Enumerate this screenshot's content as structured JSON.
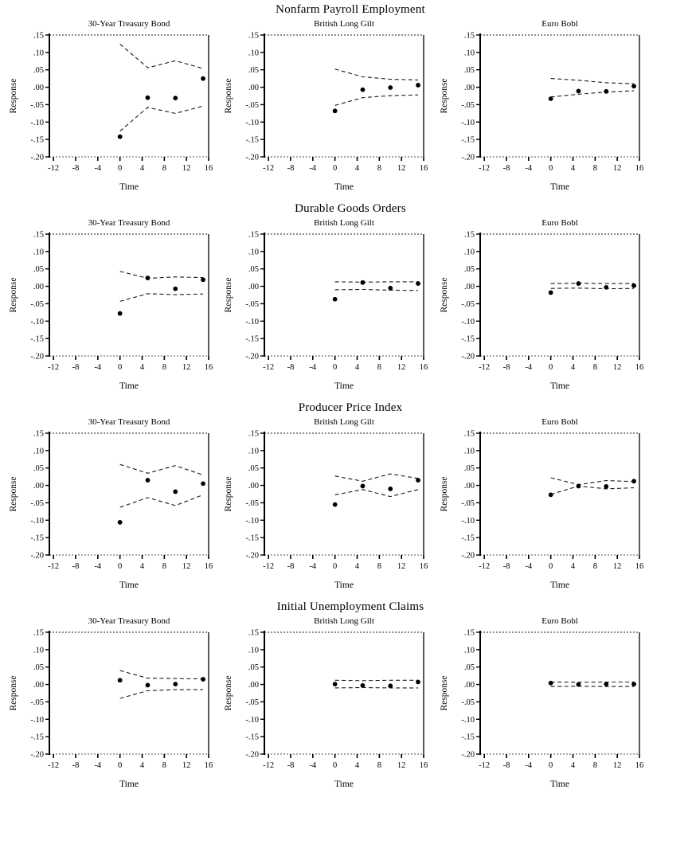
{
  "page": {
    "background": "#ffffff"
  },
  "colors": {
    "ink": "#000000",
    "frame_dotted": "#8e8e82",
    "band_line": "#1a1a1a",
    "dot": "#000000"
  },
  "chart_data": {
    "type": "scatter",
    "description_visible": "Impulse response figure grid: 4 economic-news rows by 3 bond-futures columns, each panel showing point-estimate dots with upper/lower dashed confidence bands",
    "grid": false,
    "legend": null,
    "axes": {
      "ylabel": "Response",
      "xlabel": "Time",
      "ylim": [
        -0.2,
        0.15
      ],
      "xlim": [
        -12.74,
        16
      ],
      "ytick_labels": [
        ".15",
        ".10",
        ".05",
        ".00",
        "-.05",
        "-.10",
        "-.15",
        "-.20"
      ],
      "ytick_values": [
        0.15,
        0.1,
        0.05,
        0.0,
        -0.05,
        -0.1,
        -0.15,
        -0.2
      ],
      "xtick_labels": [
        "-12",
        "-8",
        "-4",
        "0",
        "4",
        "8",
        "12",
        "16"
      ],
      "xtick_values": [
        -12,
        -8,
        -4,
        0,
        4,
        8,
        12,
        16
      ]
    },
    "x": [
      0,
      5,
      10,
      15
    ],
    "rows": [
      {
        "title": "Nonfarm Payroll Employment",
        "charts": [
          {
            "title": "30-Year Treasury Bond",
            "points": [
              -0.142,
              -0.03,
              -0.031,
              0.025
            ],
            "upper_band": [
              0.124,
              0.056,
              0.076,
              0.054
            ],
            "lower_band": [
              -0.126,
              -0.058,
              -0.075,
              -0.054
            ]
          },
          {
            "title": "British Long Gilt",
            "points": [
              -0.068,
              -0.007,
              -0.001,
              0.006
            ],
            "upper_band": [
              0.052,
              0.03,
              0.023,
              0.021
            ],
            "lower_band": [
              -0.052,
              -0.03,
              -0.024,
              -0.022
            ]
          },
          {
            "title": "Euro Bobl",
            "points": [
              -0.033,
              -0.011,
              -0.012,
              0.003
            ],
            "upper_band": [
              0.025,
              0.02,
              0.013,
              0.01
            ],
            "lower_band": [
              -0.028,
              -0.02,
              -0.014,
              -0.01
            ]
          }
        ]
      },
      {
        "title": "Durable Goods Orders",
        "charts": [
          {
            "title": "30-Year Treasury Bond",
            "points": [
              -0.078,
              0.024,
              -0.007,
              0.019
            ],
            "upper_band": [
              0.043,
              0.023,
              0.027,
              0.025
            ],
            "lower_band": [
              -0.043,
              -0.021,
              -0.024,
              -0.022
            ]
          },
          {
            "title": "British Long Gilt",
            "points": [
              -0.037,
              0.011,
              -0.005,
              0.008
            ],
            "upper_band": [
              0.013,
              0.012,
              0.013,
              0.013
            ],
            "lower_band": [
              -0.01,
              -0.009,
              -0.011,
              -0.012
            ]
          },
          {
            "title": "Euro Bobl",
            "points": [
              -0.018,
              0.008,
              -0.003,
              0.002
            ],
            "upper_band": [
              0.008,
              0.009,
              0.008,
              0.008
            ],
            "lower_band": [
              -0.006,
              -0.005,
              -0.007,
              -0.006
            ]
          }
        ]
      },
      {
        "title": "Producer Price Index",
        "charts": [
          {
            "title": "30-Year Treasury Bond",
            "points": [
              -0.106,
              0.015,
              -0.018,
              0.005
            ],
            "upper_band": [
              0.06,
              0.035,
              0.057,
              0.03
            ],
            "lower_band": [
              -0.063,
              -0.035,
              -0.058,
              -0.027
            ]
          },
          {
            "title": "British Long Gilt",
            "points": [
              -0.055,
              -0.002,
              -0.01,
              0.015
            ],
            "upper_band": [
              0.027,
              0.012,
              0.033,
              0.02
            ],
            "lower_band": [
              -0.027,
              -0.012,
              -0.032,
              -0.012
            ]
          },
          {
            "title": "Euro Bobl",
            "points": [
              -0.027,
              -0.002,
              -0.003,
              0.012
            ],
            "upper_band": [
              0.022,
              0.002,
              0.014,
              0.011
            ],
            "lower_band": [
              -0.026,
              -0.002,
              -0.01,
              -0.007
            ]
          }
        ]
      },
      {
        "title": "Initial Unemployment Claims",
        "charts": [
          {
            "title": "30-Year Treasury Bond",
            "points": [
              0.012,
              -0.002,
              0.001,
              0.015
            ],
            "upper_band": [
              0.04,
              0.018,
              0.017,
              0.016
            ],
            "lower_band": [
              -0.04,
              -0.018,
              -0.015,
              -0.015
            ]
          },
          {
            "title": "British Long Gilt",
            "points": [
              0.001,
              -0.003,
              -0.004,
              0.007
            ],
            "upper_band": [
              0.012,
              0.011,
              0.012,
              0.012
            ],
            "lower_band": [
              -0.01,
              -0.009,
              -0.01,
              -0.01
            ]
          },
          {
            "title": "Euro Bobl",
            "points": [
              0.004,
              0.0,
              0.001,
              0.001
            ],
            "upper_band": [
              0.007,
              0.006,
              0.007,
              0.007
            ],
            "lower_band": [
              -0.006,
              -0.005,
              -0.006,
              -0.006
            ]
          }
        ]
      }
    ]
  }
}
